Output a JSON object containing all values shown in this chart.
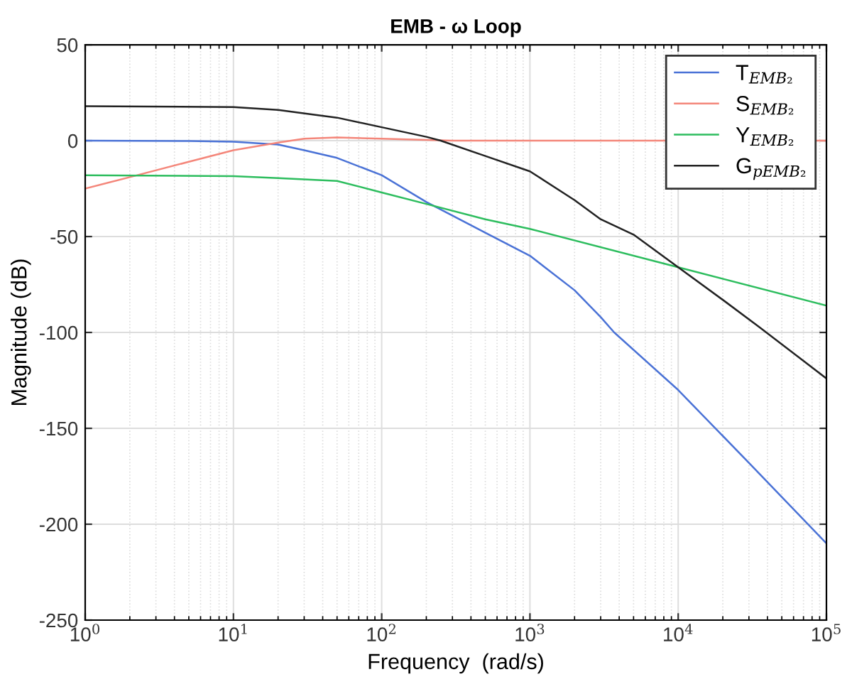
{
  "chart_data": {
    "type": "line",
    "title": "EMB - ω Loop",
    "xlabel": "Frequency  (rad/s)",
    "ylabel": "Magnitude (dB)",
    "log": "x",
    "xlim": [
      1,
      100000
    ],
    "ylim": [
      -250,
      50
    ],
    "xticks": [
      {
        "value": 1,
        "label": "10$^{0}$"
      },
      {
        "value": 10,
        "label": "10$^{1}$"
      },
      {
        "value": 100,
        "label": "10$^{2}$"
      },
      {
        "value": 1000,
        "label": "10$^{3}$"
      },
      {
        "value": 10000,
        "label": "10$^{4}$"
      },
      {
        "value": 100000,
        "label": "10$^{5}$"
      }
    ],
    "yticks": [
      -250,
      -200,
      -150,
      -100,
      -50,
      0,
      50
    ],
    "grid": true,
    "legend": "top right",
    "marker": "none",
    "line_style": "solid",
    "series": [
      {
        "name": "T$_{EMB₂}$",
        "color": "#4a72d6",
        "x": [
          1,
          5,
          10,
          20,
          30,
          50,
          100,
          200,
          500,
          1000,
          2000,
          3000,
          3700,
          10000,
          30000,
          100000
        ],
        "values": [
          0,
          -0.2,
          -0.5,
          -2,
          -5,
          -9,
          -18,
          -32,
          -48,
          -60,
          -78,
          -92,
          -100,
          -130,
          -168,
          -210
        ]
      },
      {
        "name": "S$_{EMB₂}$",
        "color": "#f4867a",
        "x": [
          1,
          2,
          5,
          10,
          20,
          30,
          50,
          100,
          300,
          1000,
          3000,
          100000
        ],
        "values": [
          -25,
          -19,
          -11,
          -5,
          -1,
          1,
          1.7,
          1,
          0,
          0,
          0,
          0
        ]
      },
      {
        "name": "Y$_{EMB₂}$",
        "color": "#2dbd5e",
        "x": [
          1,
          10,
          20,
          50,
          100,
          200,
          500,
          1000,
          10000,
          100000
        ],
        "values": [
          -18,
          -18.5,
          -19.5,
          -21,
          -27,
          -33,
          -41,
          -46,
          -66,
          -86
        ]
      },
      {
        "name": "G$_{pEMB₂}$",
        "color": "#222222",
        "x": [
          1,
          10,
          20,
          50,
          100,
          200,
          250,
          500,
          1000,
          2000,
          3000,
          5000,
          10000,
          20000,
          35000,
          100000
        ],
        "values": [
          18,
          17.5,
          16,
          12,
          7,
          2,
          0,
          -8,
          -16,
          -31,
          -41,
          -49,
          -66,
          -83,
          -97,
          -124
        ]
      }
    ]
  }
}
